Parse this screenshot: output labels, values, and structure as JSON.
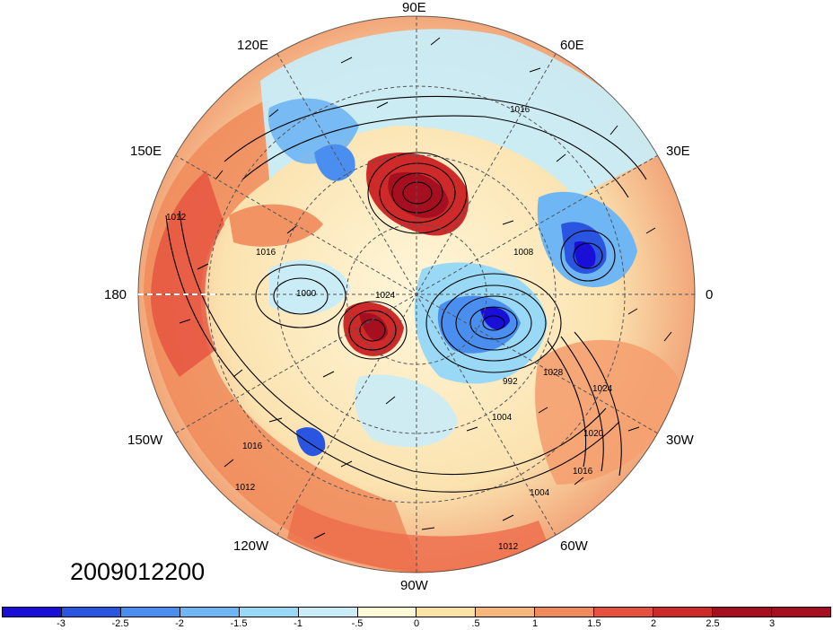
{
  "map": {
    "projection": "north-polar-stereographic",
    "longitude_labels": {
      "lon_90E": "90E",
      "lon_60E": "60E",
      "lon_30E": "30E",
      "lon_0": "0",
      "lon_30W": "30W",
      "lon_60W": "60W",
      "lon_90W": "90W",
      "lon_120W": "120W",
      "lon_150W": "150W",
      "lon_180": "180",
      "lon_150E": "150E",
      "lon_120E": "120E"
    },
    "pressure_contour_labels": [
      "1016",
      "1012",
      "1016",
      "1008",
      "1004",
      "1000",
      "992",
      "1028",
      "1024",
      "1020",
      "1016",
      "1012",
      "1016",
      "1004",
      "1024",
      "1012"
    ],
    "timestamp": "2009012200"
  },
  "colorbar": {
    "tick_labels": [
      "-3",
      "-2.5",
      "-2",
      "-1.5",
      "-1",
      "-.5",
      "0",
      ".5",
      "1",
      "1.5",
      "2",
      "2.5",
      "3"
    ],
    "colors": [
      "#1a0fd6",
      "#2a55e0",
      "#4a8ff0",
      "#6fb6f4",
      "#9ad9f6",
      "#c9ecf7",
      "#fff9d6",
      "#fde3a3",
      "#f7b77a",
      "#f08a5a",
      "#e6513f",
      "#cf2a2a",
      "#a50f1f",
      "#a50f1f"
    ]
  }
}
